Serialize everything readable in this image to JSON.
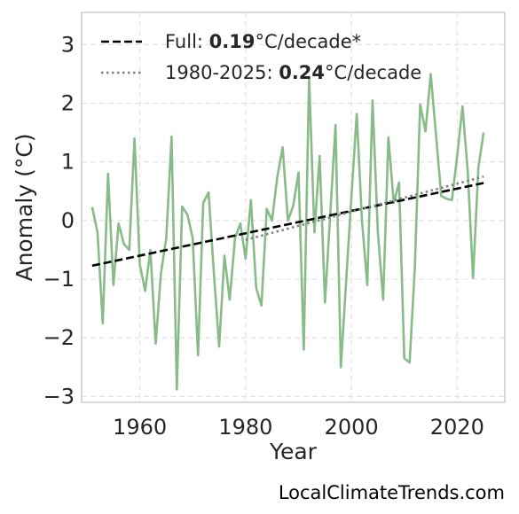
{
  "chart_data": {
    "type": "line",
    "xlabel": "Year",
    "ylabel": "Anomaly (°C)",
    "xlim": [
      1949,
      2029
    ],
    "ylim": [
      -3.1,
      3.55
    ],
    "xticks": [
      1960,
      1980,
      2000,
      2020
    ],
    "yticks": [
      -3,
      -2,
      -1,
      0,
      1,
      2,
      3
    ],
    "ytick_labels": [
      "−3",
      "−2",
      "−1",
      "0",
      "1",
      "2",
      "3"
    ],
    "grid": true,
    "legend_position": "top-left",
    "series": [
      {
        "name": "",
        "style": "solid",
        "color": "#88bb88",
        "x": [
          1951,
          1952,
          1953,
          1954,
          1955,
          1956,
          1957,
          1958,
          1959,
          1960,
          1961,
          1962,
          1963,
          1964,
          1965,
          1966,
          1967,
          1968,
          1969,
          1970,
          1971,
          1972,
          1973,
          1974,
          1975,
          1976,
          1977,
          1978,
          1979,
          1980,
          1981,
          1982,
          1983,
          1984,
          1985,
          1986,
          1987,
          1988,
          1989,
          1990,
          1991,
          1992,
          1993,
          1994,
          1995,
          1996,
          1997,
          1998,
          1999,
          2000,
          2001,
          2002,
          2003,
          2004,
          2005,
          2006,
          2007,
          2008,
          2009,
          2010,
          2011,
          2012,
          2013,
          2014,
          2015,
          2016,
          2017,
          2018,
          2019,
          2020,
          2021,
          2022,
          2023,
          2024,
          2025
        ],
        "y": [
          0.23,
          -0.2,
          -1.75,
          0.8,
          -1.1,
          -0.05,
          -0.4,
          -0.5,
          1.4,
          -0.75,
          -1.2,
          -0.5,
          -2.1,
          -0.9,
          -0.3,
          1.43,
          -2.88,
          0.24,
          0.1,
          -0.3,
          -2.3,
          0.3,
          0.48,
          -0.9,
          -2.15,
          -0.6,
          -1.35,
          -0.3,
          -0.05,
          -0.65,
          0.35,
          -1.15,
          -1.45,
          0.2,
          0.0,
          0.75,
          1.25,
          0.0,
          0.25,
          0.82,
          -2.2,
          2.45,
          -0.2,
          1.1,
          -1.4,
          0.1,
          1.63,
          -2.5,
          -1.05,
          0.4,
          1.82,
          0.0,
          -1.1,
          2.05,
          -0.2,
          -1.35,
          1.42,
          0.3,
          0.65,
          -2.35,
          -2.42,
          -0.8,
          1.98,
          1.52,
          2.5,
          1.45,
          0.42,
          0.37,
          0.35,
          1.1,
          1.95,
          0.82,
          -0.98,
          0.9,
          1.5
        ]
      },
      {
        "name": "Full",
        "style": "dashed",
        "color": "#000000",
        "slope_per_decade": 0.19,
        "x": [
          1951,
          2025
        ],
        "y": [
          -0.77,
          0.64
        ]
      },
      {
        "name": "1980-2025",
        "style": "dotted",
        "color": "#808080",
        "slope_per_decade": 0.24,
        "x": [
          1980,
          2025
        ],
        "y": [
          -0.33,
          0.75
        ]
      }
    ]
  },
  "legend": {
    "full_prefix": "Full: ",
    "full_value": "0.19",
    "full_suffix": "°C/decade*",
    "recent_prefix": "1980-2025: ",
    "recent_value": "0.24",
    "recent_suffix": "°C/decade"
  },
  "credit": "LocalClimateTrends.com"
}
